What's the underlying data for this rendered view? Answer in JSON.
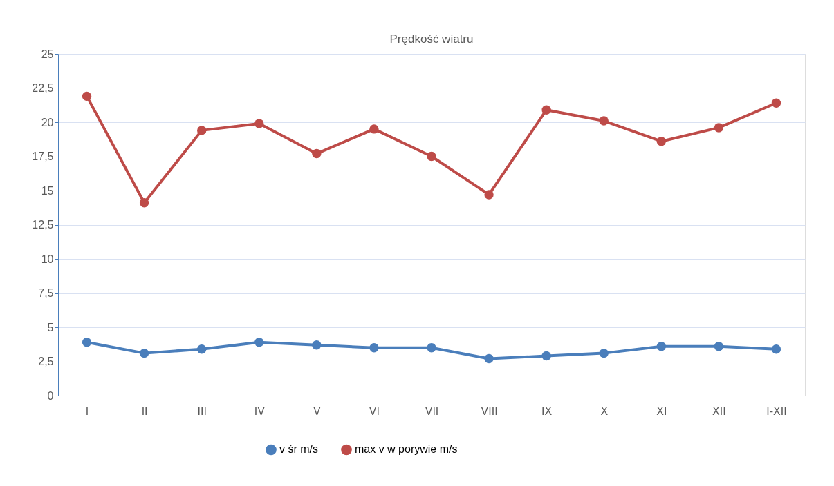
{
  "chart_data": {
    "type": "line",
    "title": "Prędkość wiatru",
    "categories": [
      "I",
      "II",
      "III",
      "IV",
      "V",
      "VI",
      "VII",
      "VIII",
      "IX",
      "X",
      "XI",
      "XII",
      "I-XII"
    ],
    "series": [
      {
        "name": "v śr m/s",
        "color": "#4a7ebb",
        "values": [
          3.9,
          3.1,
          3.4,
          3.9,
          3.7,
          3.5,
          3.5,
          2.7,
          2.9,
          3.1,
          3.6,
          3.6,
          3.4
        ]
      },
      {
        "name": "max v w porywie m/s",
        "color": "#be4b48",
        "values": [
          21.9,
          14.1,
          19.4,
          19.9,
          17.7,
          19.5,
          17.5,
          14.7,
          20.9,
          20.1,
          18.6,
          19.6,
          21.4
        ]
      }
    ],
    "ylim": [
      0,
      25
    ],
    "yticks": [
      0,
      {
        "value": 2.5,
        "label": "2,5"
      },
      5,
      {
        "value": 7.5,
        "label": "7,5"
      },
      10,
      {
        "value": 12.5,
        "label": "12,5"
      },
      15,
      {
        "value": 17.5,
        "label": "17,5"
      },
      20,
      {
        "value": 22.5,
        "label": "22,5"
      },
      25
    ],
    "grid": "y",
    "legend": "bottom",
    "marker": "circle",
    "line_style": "solid"
  }
}
